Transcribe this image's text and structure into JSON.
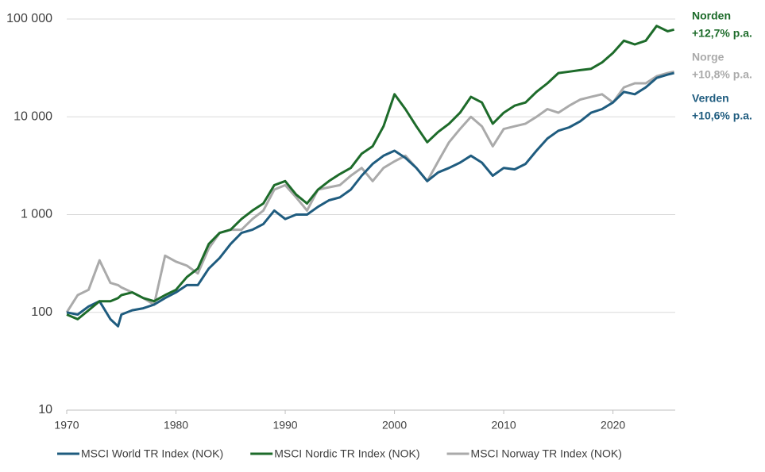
{
  "chart_data": {
    "type": "line",
    "log_y": true,
    "grid": true,
    "x": [
      1970,
      1971,
      1972,
      1973,
      1974,
      1974.7,
      1975,
      1976,
      1977,
      1978,
      1979,
      1980,
      1981,
      1982,
      1983,
      1984,
      1985,
      1986,
      1987,
      1988,
      1989,
      1990,
      1991,
      1992,
      1993,
      1994,
      1995,
      1996,
      1997,
      1998,
      1999,
      2000,
      2001,
      2002,
      2003,
      2004,
      2005,
      2006,
      2007,
      2008,
      2009,
      2010,
      2011,
      2012,
      2013,
      2014,
      2015,
      2016,
      2017,
      2018,
      2019,
      2020,
      2021,
      2022,
      2023,
      2024,
      2025,
      2025.6
    ],
    "series": [
      {
        "name": "MSCI World TR Index (NOK)",
        "color": "#1f5c7f",
        "values": [
          100,
          95,
          115,
          130,
          85,
          72,
          95,
          105,
          110,
          120,
          140,
          160,
          190,
          190,
          280,
          360,
          500,
          650,
          700,
          800,
          1100,
          900,
          1000,
          1000,
          1200,
          1400,
          1500,
          1800,
          2500,
          3300,
          4000,
          4500,
          3800,
          3000,
          2200,
          2700,
          3000,
          3400,
          4000,
          3400,
          2500,
          3000,
          2900,
          3300,
          4500,
          6000,
          7200,
          7800,
          9000,
          11000,
          12000,
          14000,
          18000,
          17000,
          20000,
          25000,
          27000,
          28000
        ]
      },
      {
        "name": "MSCI Nordic TR Index (NOK)",
        "color": "#1d6b2a",
        "values": [
          95,
          85,
          105,
          130,
          130,
          140,
          150,
          160,
          140,
          130,
          150,
          170,
          230,
          280,
          500,
          650,
          700,
          900,
          1100,
          1300,
          2000,
          2200,
          1600,
          1300,
          1800,
          2200,
          2600,
          3000,
          4200,
          5000,
          8000,
          17000,
          12000,
          8000,
          5500,
          7000,
          8500,
          11000,
          16000,
          14000,
          8500,
          11000,
          13000,
          14000,
          18000,
          22000,
          28000,
          29000,
          30000,
          31000,
          36000,
          45000,
          60000,
          55000,
          60000,
          85000,
          75000,
          78000
        ]
      },
      {
        "name": "MSCI Norway TR Index (NOK)",
        "color": "#aaaaaa",
        "values": [
          100,
          150,
          170,
          340,
          200,
          190,
          180,
          160,
          140,
          120,
          380,
          330,
          300,
          250,
          450,
          650,
          700,
          700,
          900,
          1100,
          1800,
          2000,
          1500,
          1100,
          1800,
          1900,
          2000,
          2500,
          3000,
          2200,
          3000,
          3500,
          4000,
          3000,
          2200,
          3500,
          5500,
          7500,
          10000,
          8000,
          5000,
          7500,
          8000,
          8500,
          10000,
          12000,
          11000,
          13000,
          15000,
          16000,
          17000,
          14000,
          20000,
          22000,
          22000,
          26000,
          28000,
          29000
        ]
      }
    ],
    "xlim": [
      1970,
      2025.7
    ],
    "xticks": [
      1970,
      1980,
      1990,
      2000,
      2010,
      2020
    ],
    "ylim": [
      10,
      100000
    ],
    "yticks": [
      10,
      100,
      {
        "value": 1000,
        "label": "1 000"
      },
      {
        "value": 10000,
        "label": "10 000"
      },
      {
        "value": 100000,
        "label": "100 000"
      }
    ],
    "annotations": [
      {
        "name": "Norden",
        "rate": "+12,7% p.a.",
        "color": "#1d6b2a"
      },
      {
        "name": "Norge",
        "rate": "+10,8% p.a.",
        "color": "#aaaaaa"
      },
      {
        "name": "Verden",
        "rate": "+10,6% p.a.",
        "color": "#1f5c7f"
      }
    ]
  }
}
